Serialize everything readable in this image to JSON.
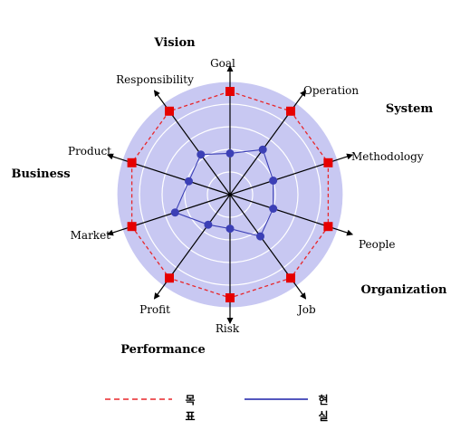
{
  "chart_data": {
    "type": "radar",
    "axes": [
      "Goal",
      "Operation",
      "Methodology",
      "People",
      "Job",
      "Risk",
      "Profit",
      "Market",
      "Product",
      "Responsibility"
    ],
    "series": [
      {
        "name": "목표",
        "values": [
          100,
          100,
          100,
          100,
          100,
          100,
          100,
          100,
          100,
          100
        ],
        "color": "#e8262a",
        "style": "dashed",
        "marker": "square"
      },
      {
        "name": "현실",
        "values": [
          40,
          54,
          44,
          44,
          50,
          33,
          36,
          56,
          42,
          48
        ],
        "color": "#3b3fb5",
        "style": "solid",
        "marker": "circle"
      }
    ],
    "range": [
      0,
      100
    ],
    "rings": 5,
    "background_color": "#c8c8f2",
    "groups": [
      {
        "label": "Vision"
      },
      {
        "label": "System"
      },
      {
        "label": "Business"
      },
      {
        "label": "Organization"
      },
      {
        "label": "Performance"
      }
    ]
  }
}
